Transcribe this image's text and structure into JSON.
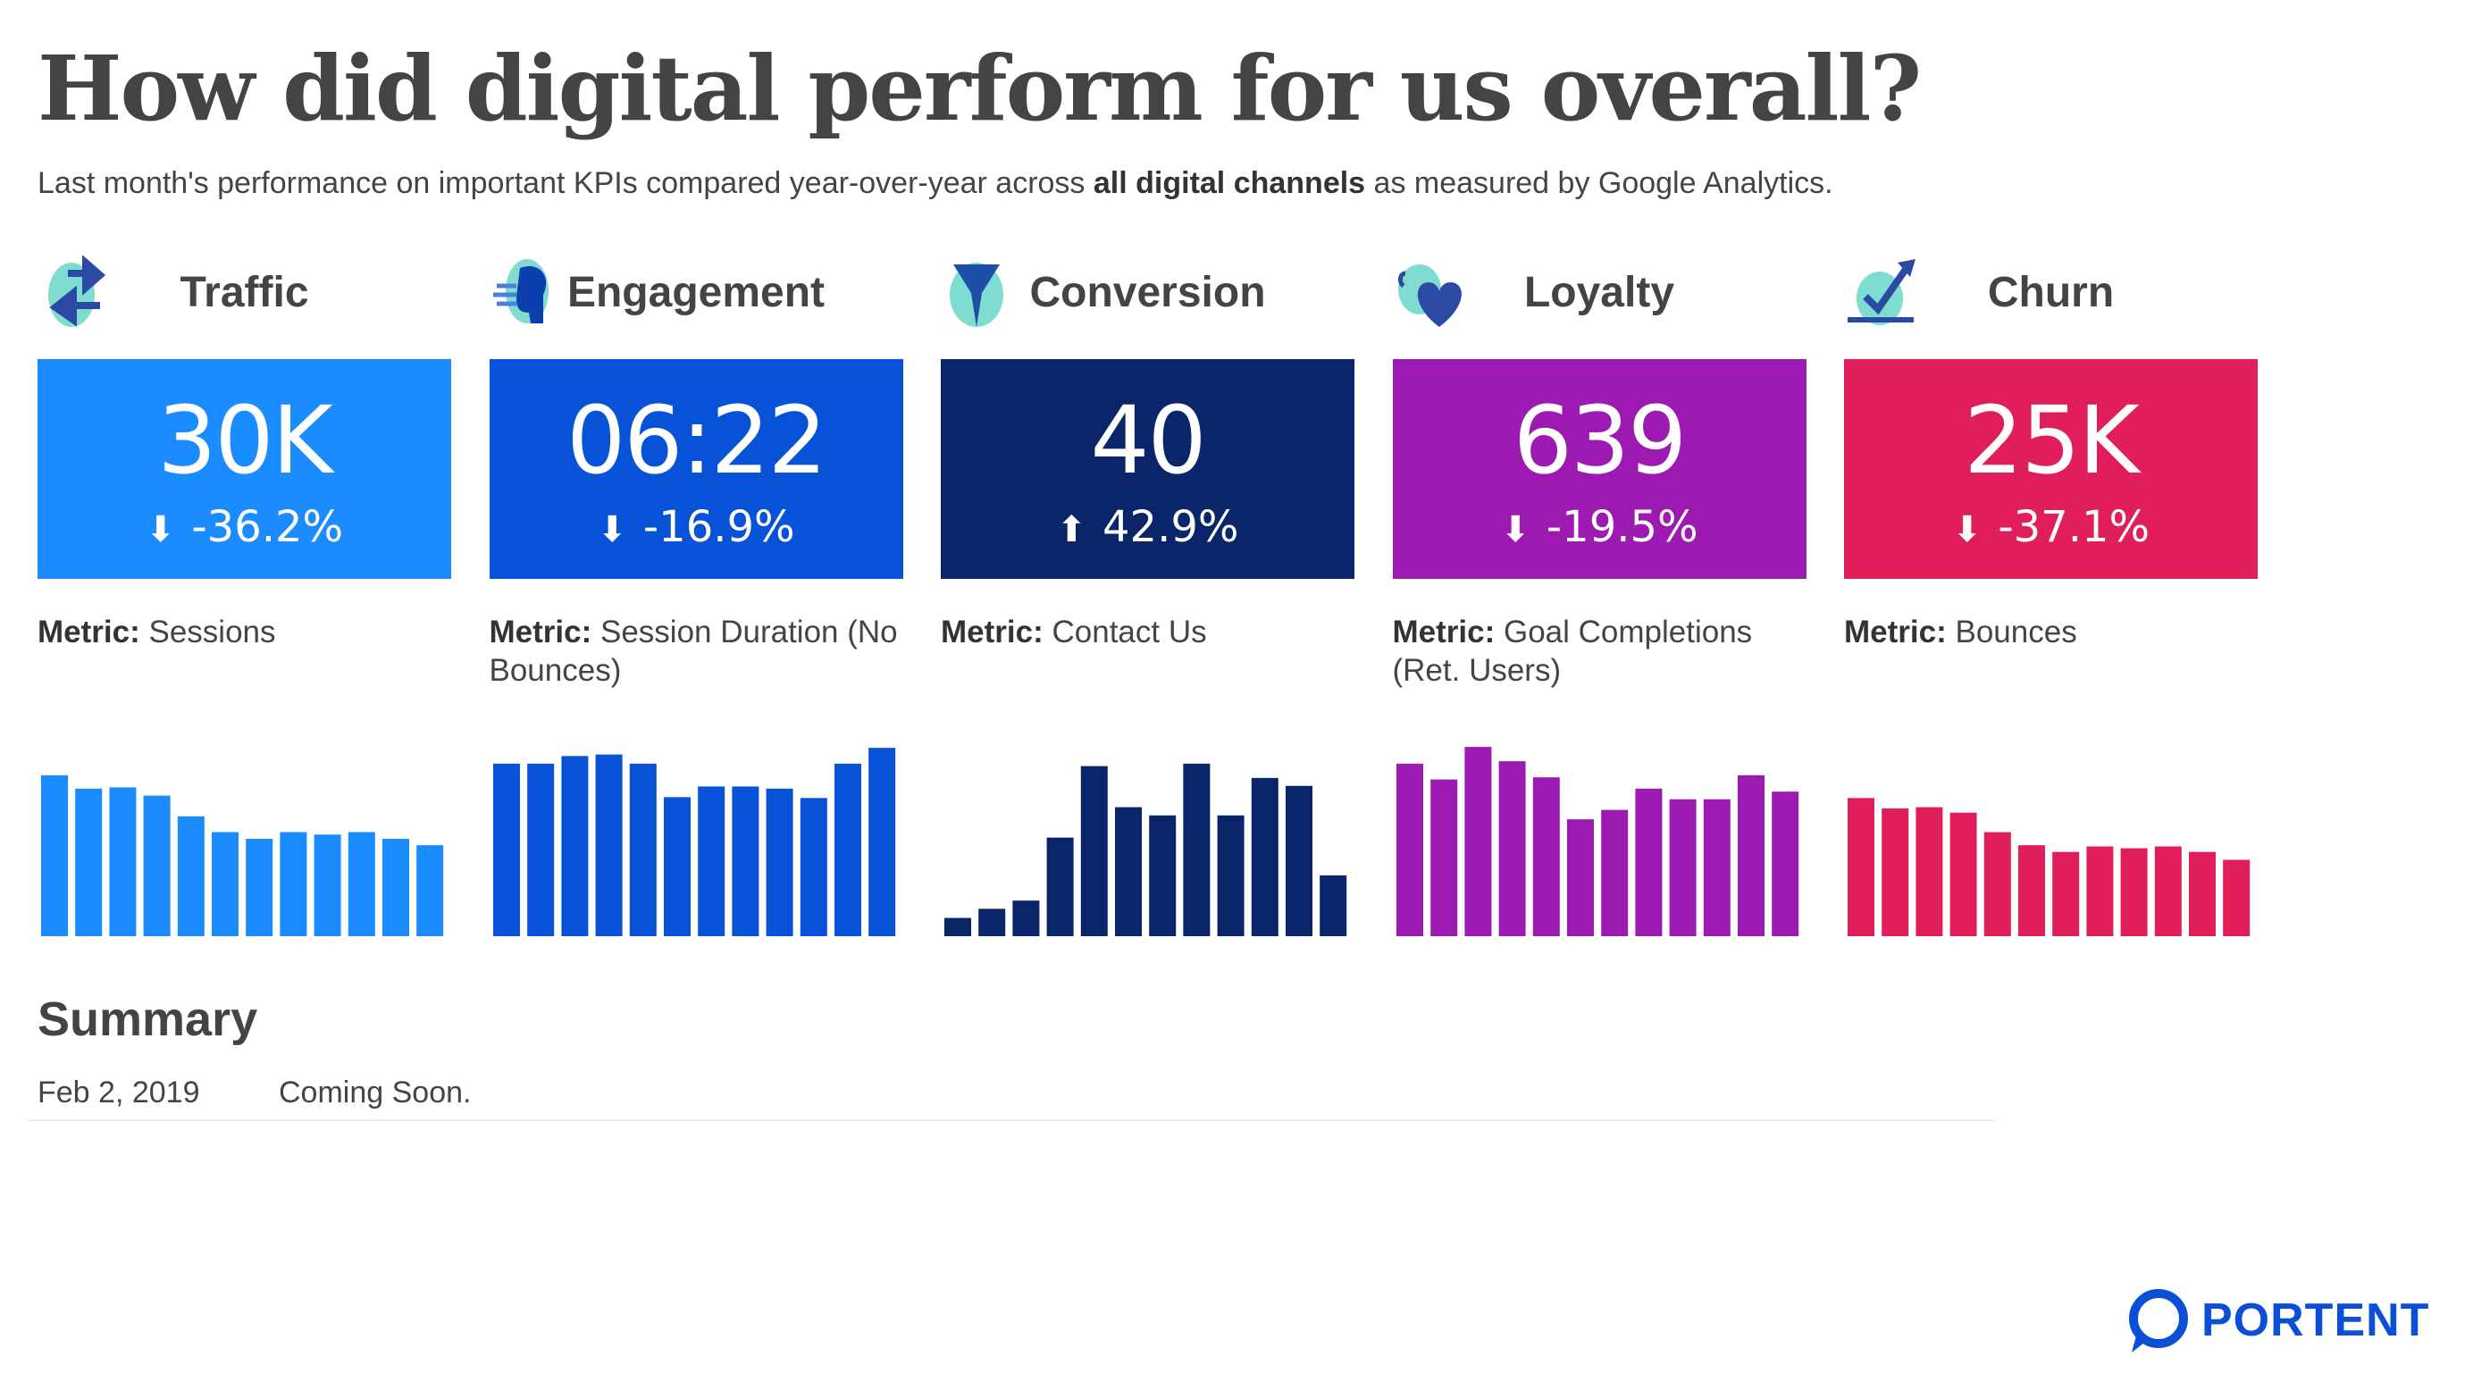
{
  "header": {
    "title": "How did digital perform for us overall?",
    "subtitle_pre": "Last month's performance on important KPIs compared year-over-year across ",
    "subtitle_bold": "all digital channels",
    "subtitle_post": " as measured by Google Analytics."
  },
  "metric_prefix": "Metric:",
  "kpis": [
    {
      "label": "Traffic",
      "icon": "traffic-arrows-icon",
      "value": "30K",
      "change": "-36.2%",
      "direction": "down",
      "metric": "Sessions",
      "color": "#1a8cff"
    },
    {
      "label": "Engagement",
      "icon": "engagement-head-icon",
      "value": "06:22",
      "change": "-16.9%",
      "direction": "down",
      "metric": "Session Duration (No Bounces)",
      "color": "#0852d8"
    },
    {
      "label": "Conversion",
      "icon": "funnel-icon",
      "value": "40",
      "change": "42.9%",
      "direction": "up",
      "metric": "Contact Us",
      "color": "#0a2569"
    },
    {
      "label": "Loyalty",
      "icon": "hearts-icon",
      "value": "639",
      "change": "-19.5%",
      "direction": "down",
      "metric": "Goal Completions (Ret. Users)",
      "color": "#9c1ab1"
    },
    {
      "label": "Churn",
      "icon": "chart-check-icon",
      "value": "25K",
      "change": "-37.1%",
      "direction": "down",
      "metric": "Bounces",
      "color": "#e01f5a"
    }
  ],
  "chart_data": [
    {
      "type": "bar",
      "series_of": "Traffic",
      "values": [
        529,
        485,
        489,
        462,
        394,
        342,
        320,
        342,
        334,
        342,
        320,
        299
      ],
      "grid": false,
      "axes": false
    },
    {
      "type": "bar",
      "series_of": "Engagement",
      "values": [
        567,
        567,
        592,
        597,
        567,
        457,
        492,
        492,
        485,
        454,
        567,
        619
      ],
      "grid": false,
      "axes": false
    },
    {
      "type": "bar",
      "series_of": "Conversion",
      "values": [
        60,
        90,
        117,
        324,
        559,
        424,
        397,
        567,
        397,
        520,
        494,
        200
      ],
      "grid": false,
      "axes": false
    },
    {
      "type": "bar",
      "series_of": "Loyalty",
      "values": [
        567,
        515,
        622,
        575,
        522,
        384,
        415,
        485,
        450,
        450,
        529,
        475
      ],
      "grid": false,
      "axes": false
    },
    {
      "type": "bar",
      "series_of": "Churn",
      "values": [
        454,
        420,
        424,
        406,
        342,
        299,
        277,
        295,
        289,
        295,
        277,
        251
      ],
      "grid": false,
      "axes": false
    }
  ],
  "summary": {
    "title": "Summary",
    "date": "Feb 2, 2019",
    "text": "Coming Soon."
  },
  "logo": {
    "text": "PORTENT",
    "color": "#0a4fd6"
  }
}
